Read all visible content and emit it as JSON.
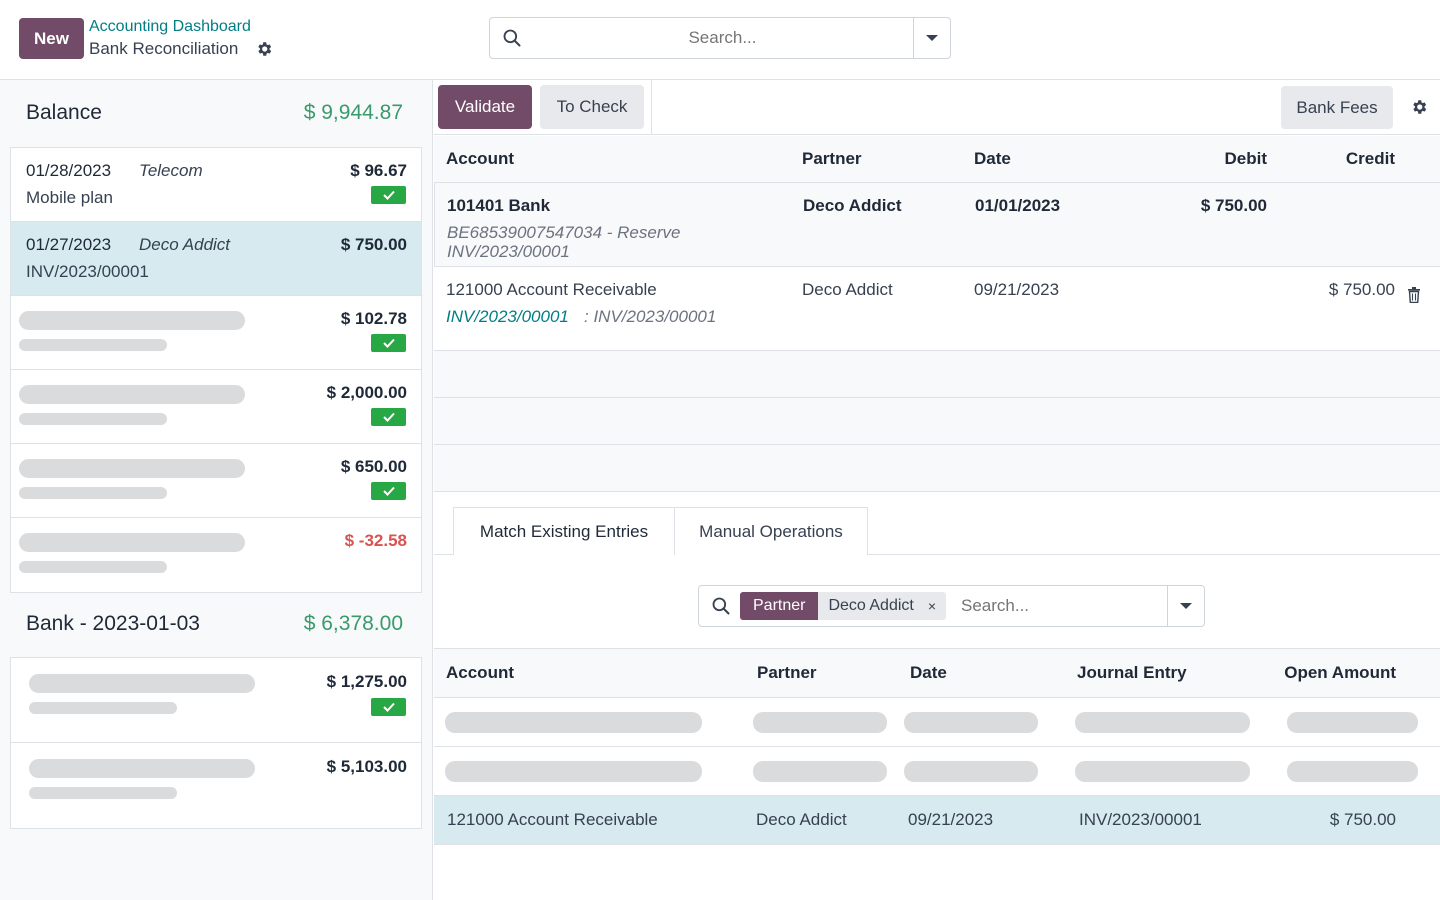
{
  "header": {
    "new_label": "New",
    "breadcrumb_parent": "Accounting Dashboard",
    "breadcrumb_current": "Bank Reconciliation",
    "search_placeholder": "Search..."
  },
  "statements": [
    {
      "title": "Balance",
      "amount": "$ 9,944.87",
      "transactions": [
        {
          "date": "01/28/2023",
          "partner": "Telecom",
          "label": "Mobile plan",
          "amount": "$ 96.67",
          "checked": true
        },
        {
          "date": "01/27/2023",
          "partner": "Deco Addict",
          "label": "INV/2023/00001",
          "amount": "$ 750.00",
          "checked": false,
          "selected": true
        },
        {
          "amount": "$ 102.78",
          "checked": true,
          "placeholder": true
        },
        {
          "amount": "$ 2,000.00",
          "checked": true,
          "placeholder": true
        },
        {
          "amount": "$ 650.00",
          "checked": true,
          "placeholder": true
        },
        {
          "amount": "$ -32.58",
          "checked": false,
          "placeholder": true,
          "negative": true
        }
      ]
    },
    {
      "title": "Bank - 2023-01-03",
      "amount": "$ 6,378.00",
      "transactions": [
        {
          "amount": "$ 1,275.00",
          "checked": true,
          "placeholder": true
        },
        {
          "amount": "$ 5,103.00",
          "checked": false,
          "placeholder": true
        }
      ]
    }
  ],
  "toolbar": {
    "validate_label": "Validate",
    "to_check_label": "To Check",
    "bank_fees_label": "Bank Fees"
  },
  "lines_table": {
    "headers": {
      "account": "Account",
      "partner": "Partner",
      "date": "Date",
      "debit": "Debit",
      "credit": "Credit"
    },
    "rows": [
      {
        "account": "101401 Bank",
        "partner": "Deco Addict",
        "date": "01/01/2023",
        "debit": "$ 750.00",
        "credit": "",
        "memo_line1": "BE68539007547034 - Reserve",
        "memo_line2": "INV/2023/00001"
      },
      {
        "account": "121000 Account Receivable",
        "partner": "Deco Addict",
        "date": "09/21/2023",
        "debit": "",
        "credit": "$ 750.00",
        "ref_link": "INV/2023/00001",
        "ref_suffix": ": INV/2023/00001"
      }
    ]
  },
  "tabs": {
    "match_existing": "Match Existing Entries",
    "manual_operations": "Manual Operations"
  },
  "match_search": {
    "facet_name": "Partner",
    "facet_value": "Deco Addict",
    "facet_remove": "×",
    "placeholder": "Search..."
  },
  "amls_table": {
    "headers": {
      "account": "Account",
      "partner": "Partner",
      "date": "Date",
      "journal_entry": "Journal Entry",
      "open_amount": "Open Amount"
    },
    "selected_row": {
      "account": "121000 Account Receivable",
      "partner": "Deco Addict",
      "date": "09/21/2023",
      "journal_entry": "INV/2023/00001",
      "open_amount": "$ 750.00"
    }
  },
  "colors": {
    "brand": "#714b67",
    "link": "#017e84",
    "positive": "#3a9a6b",
    "negative": "#d9534f",
    "selected_row": "#d6eaef",
    "check_badge": "#28a745"
  }
}
